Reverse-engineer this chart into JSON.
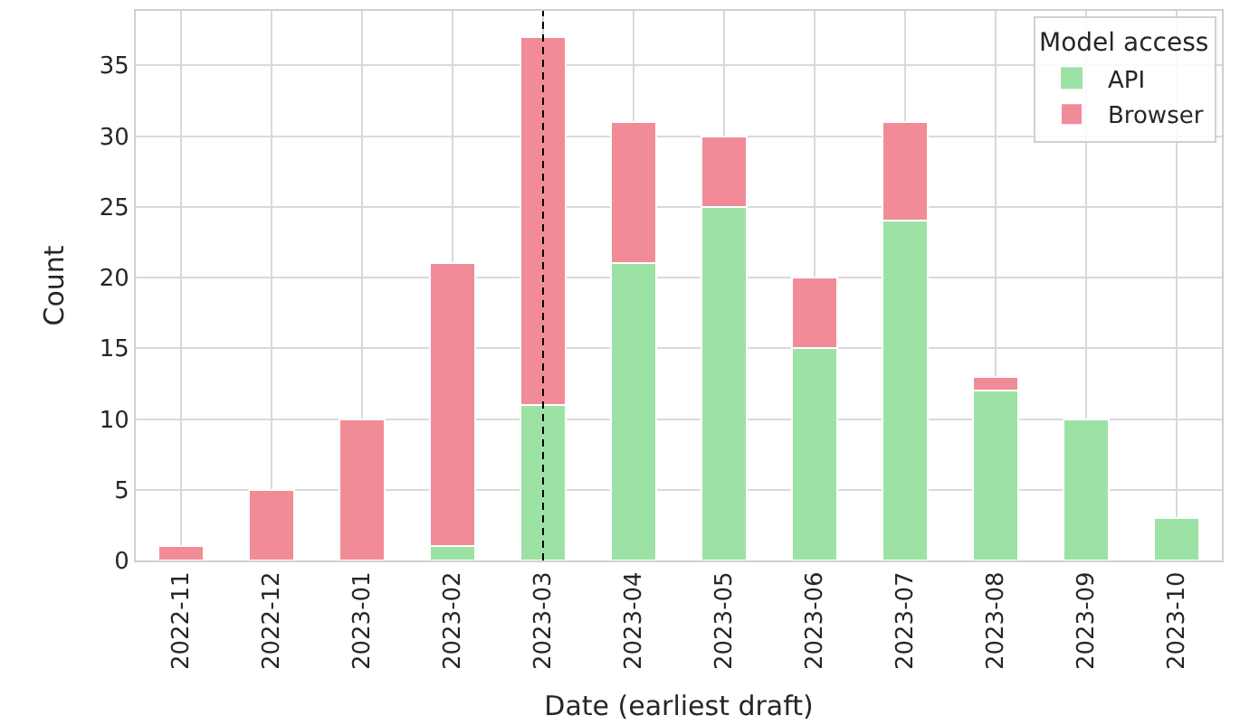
{
  "chart_data": {
    "type": "bar",
    "stacked": true,
    "xlabel": "Date (earliest draft)",
    "ylabel": "Count",
    "legend_title": "Model access",
    "categories": [
      "2022-11",
      "2022-12",
      "2023-01",
      "2023-02",
      "2023-03",
      "2023-04",
      "2023-05",
      "2023-06",
      "2023-07",
      "2023-08",
      "2023-09",
      "2023-10"
    ],
    "series": [
      {
        "name": "API",
        "color": "#9de2a5",
        "values": [
          0,
          0,
          0,
          1,
          11,
          21,
          25,
          15,
          24,
          12,
          10,
          3
        ]
      },
      {
        "name": "Browser",
        "color": "#f28b98",
        "values": [
          1,
          5,
          10,
          20,
          26,
          10,
          5,
          5,
          7,
          1,
          0,
          0
        ]
      }
    ],
    "ylim": [
      0,
      38.85
    ],
    "yticks": [
      0,
      5,
      10,
      15,
      20,
      25,
      30,
      35
    ],
    "ref_lines": [
      {
        "axis": "x",
        "value": "2023-03",
        "color": "#000000",
        "line_style": "dashed"
      }
    ],
    "grid": true,
    "legend": "top right"
  }
}
